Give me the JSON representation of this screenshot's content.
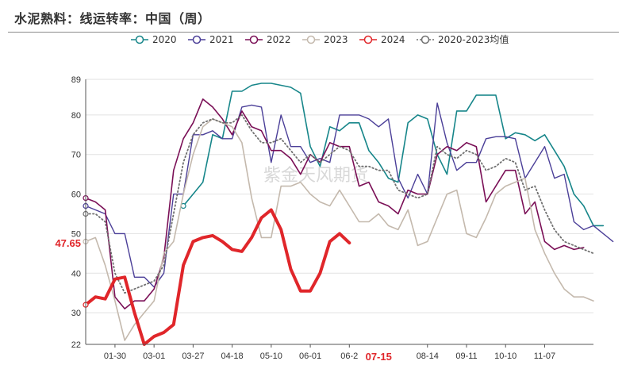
{
  "header": {
    "title": "水泥熟料：线运转率：中国（周）"
  },
  "chart_data": {
    "type": "line",
    "title": "水泥熟料：线运转率：中国（周）",
    "xlabel": "",
    "ylabel": "",
    "ylim": [
      22,
      89
    ],
    "y_ticks": [
      22,
      30,
      40,
      50,
      60,
      70,
      80,
      89
    ],
    "x_tick_labels": [
      "01-30",
      "03-01",
      "03-27",
      "04-18",
      "05-10",
      "06-01",
      "06-2",
      "08-14",
      "09-11",
      "10-10",
      "11-07"
    ],
    "x_tick_weeks": [
      3,
      7,
      11,
      15,
      19,
      23,
      27,
      35,
      39,
      43,
      47
    ],
    "grid": "horizontal",
    "legend_position": "top",
    "highlight": {
      "y_value_label": "47.65",
      "y_value": 47.65,
      "x_label": "07-15",
      "x_week": 30
    },
    "watermark": "紫金天风期货",
    "series": [
      {
        "name": "2020",
        "color": "#17868a",
        "dash": "solid",
        "width": 1.6,
        "start_week": 10,
        "values": [
          57,
          60,
          63,
          75,
          74,
          86,
          86,
          87.5,
          88,
          88,
          87.5,
          87,
          85.5,
          72,
          67,
          77,
          76,
          78,
          78,
          71,
          68,
          64,
          63,
          78,
          80,
          79,
          70,
          65,
          81,
          81,
          85,
          85,
          85,
          74,
          75.5,
          75,
          73.5,
          75,
          71,
          67,
          60,
          57,
          52,
          52
        ]
      },
      {
        "name": "2021",
        "color": "#4b3f98",
        "dash": "solid",
        "width": 1.4,
        "start_week": 0,
        "values": [
          57,
          56,
          55,
          50,
          50,
          39,
          39,
          36.5,
          40,
          60,
          60,
          75,
          75,
          76,
          74,
          74,
          82,
          82.5,
          82,
          68,
          80,
          72,
          72,
          68,
          69,
          68,
          80,
          80,
          80,
          79,
          77,
          79,
          64,
          59,
          65,
          60,
          83,
          73,
          66,
          68,
          68,
          74,
          74.5,
          74.5,
          74,
          64,
          68,
          72,
          64,
          65,
          53,
          51,
          52,
          50,
          48
        ]
      },
      {
        "name": "2022",
        "color": "#7a0f56",
        "dash": "solid",
        "width": 1.6,
        "start_week": 0,
        "values": [
          59,
          58,
          56,
          34,
          31,
          33,
          33,
          36,
          44,
          66,
          74,
          78,
          84,
          82,
          79,
          75,
          81,
          77,
          76,
          71,
          71,
          69,
          65,
          70,
          68,
          73,
          72,
          72,
          62,
          63,
          58,
          57,
          55,
          61,
          60,
          60,
          70,
          72,
          71,
          73,
          72,
          58,
          62,
          66,
          66,
          55,
          58,
          48,
          46,
          47,
          46,
          46.5
        ]
      },
      {
        "name": "2023",
        "color": "#c4b9ad",
        "dash": "solid",
        "width": 1.6,
        "start_week": 0,
        "values": [
          48,
          49,
          42,
          33,
          23,
          27,
          30,
          33,
          45,
          48,
          60,
          70,
          77,
          79,
          78,
          77,
          73,
          59,
          49,
          49,
          62,
          62,
          63,
          60,
          58,
          57,
          61,
          57,
          53,
          53,
          55,
          52,
          51,
          56,
          47,
          48,
          54,
          60,
          61,
          50,
          49,
          54,
          60,
          62,
          63,
          64,
          51,
          45,
          40,
          36,
          34,
          34,
          33
        ]
      },
      {
        "name": "2024",
        "color": "#e0262a",
        "dash": "solid",
        "width": 4,
        "start_week": 0,
        "values": [
          32,
          34,
          33.5,
          38.5,
          39,
          30,
          22,
          24,
          25,
          27,
          42,
          48,
          49,
          49.5,
          48,
          46,
          45.5,
          49,
          54,
          56,
          51,
          41,
          35.5,
          35.5,
          40,
          48,
          50,
          47.65
        ]
      },
      {
        "name": "2020-2023均值",
        "color": "#707070",
        "dash": "dot",
        "width": 1.8,
        "start_week": 0,
        "values": [
          55,
          55,
          53,
          40,
          35,
          36,
          37,
          38,
          42,
          55,
          68,
          75,
          78,
          79,
          78,
          78,
          80,
          76,
          73,
          73,
          74,
          71,
          68,
          70,
          68,
          70,
          72,
          71,
          67,
          67,
          66,
          66,
          61,
          60,
          59,
          60,
          72,
          70,
          69,
          71,
          70,
          66,
          67,
          69,
          68,
          61,
          62,
          56,
          51,
          48,
          47,
          46,
          45
        ]
      }
    ]
  }
}
